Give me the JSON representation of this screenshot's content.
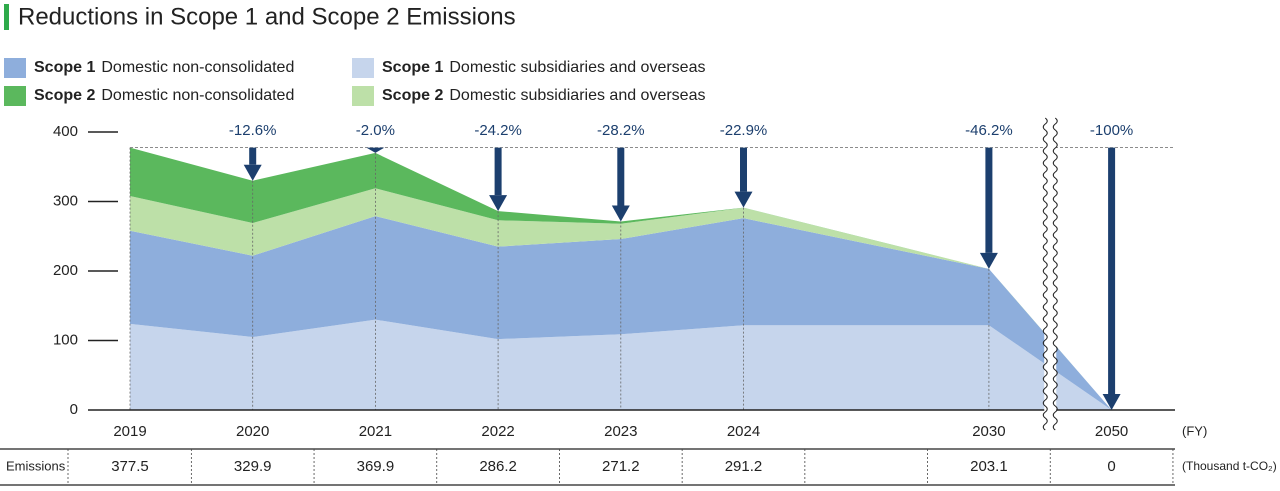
{
  "chart_data": {
    "type": "stacked_area",
    "title": "Reductions in Scope 1 and Scope 2 Emissions",
    "categories": [
      "2019",
      "2020",
      "2021",
      "2022",
      "2023",
      "2024",
      "2030",
      "2050"
    ],
    "x_label": "(FY)",
    "series": [
      {
        "scope": "Scope 1",
        "name": "Domestic subsidiaries and overseas",
        "color": "#c6d5ec",
        "values": [
          124,
          105,
          130,
          102,
          109,
          122,
          122,
          0
        ]
      },
      {
        "scope": "Scope 1",
        "name": "Domestic non-consolidated",
        "color": "#8eaedc",
        "values": [
          134,
          117,
          149,
          133,
          137,
          154,
          81,
          0
        ]
      },
      {
        "scope": "Scope 2",
        "name": "Domestic subsidiaries and overseas",
        "color": "#bde0a8",
        "values": [
          50,
          47,
          40,
          38,
          22,
          15,
          0,
          0
        ]
      },
      {
        "scope": "Scope 2",
        "name": "Domestic non-consolidated",
        "color": "#5bb85d",
        "values": [
          69.5,
          60.9,
          50.9,
          13.2,
          3.2,
          0.2,
          0.1,
          0
        ]
      }
    ],
    "reductions": {
      "values": [
        null,
        -12.6,
        -2.0,
        -24.2,
        -28.2,
        -22.9,
        -46.2,
        -100
      ],
      "value_labels": [
        null,
        "-12.6%",
        "-2.0%",
        "-24.2%",
        "-28.2%",
        "-22.9%",
        "-46.2%",
        "-100%"
      ],
      "color": "#1c3f6e"
    },
    "table": {
      "label": "Emissions",
      "values": [
        377.5,
        329.9,
        369.9,
        286.2,
        271.2,
        291.2,
        203.1,
        0
      ],
      "unit": "(Thousand t-CO₂)"
    },
    "ylim": [
      0,
      400
    ],
    "yticks": [
      0,
      100,
      200,
      300,
      400
    ]
  }
}
